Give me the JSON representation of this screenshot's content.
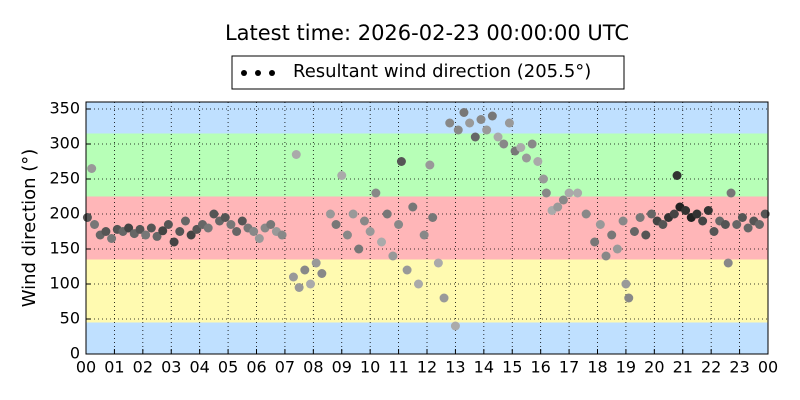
{
  "chart_data": {
    "type": "scatter",
    "title": "Latest time: 2026-02-23 00:00:00 UTC",
    "y_label": "Wind direction (°)",
    "xlim": [
      0,
      24
    ],
    "ylim": [
      0,
      360
    ],
    "xticks": [
      {
        "value": 0,
        "label": "00"
      },
      {
        "value": 1,
        "label": "01"
      },
      {
        "value": 2,
        "label": "02"
      },
      {
        "value": 3,
        "label": "03"
      },
      {
        "value": 4,
        "label": "04"
      },
      {
        "value": 5,
        "label": "05"
      },
      {
        "value": 6,
        "label": "06"
      },
      {
        "value": 7,
        "label": "07"
      },
      {
        "value": 8,
        "label": "08"
      },
      {
        "value": 9,
        "label": "09"
      },
      {
        "value": 10,
        "label": "10"
      },
      {
        "value": 11,
        "label": "11"
      },
      {
        "value": 12,
        "label": "12"
      },
      {
        "value": 13,
        "label": "13"
      },
      {
        "value": 14,
        "label": "14"
      },
      {
        "value": 15,
        "label": "15"
      },
      {
        "value": 16,
        "label": "16"
      },
      {
        "value": 17,
        "label": "17"
      },
      {
        "value": 18,
        "label": "18"
      },
      {
        "value": 19,
        "label": "19"
      },
      {
        "value": 20,
        "label": "20"
      },
      {
        "value": 21,
        "label": "21"
      },
      {
        "value": 22,
        "label": "22"
      },
      {
        "value": 23,
        "label": "23"
      },
      {
        "value": 24,
        "label": "00"
      }
    ],
    "yticks": [
      0,
      50,
      100,
      150,
      200,
      250,
      300,
      350
    ],
    "grid": true,
    "bands": [
      {
        "from": 0,
        "to": 45,
        "color": "#bfe0ff"
      },
      {
        "from": 45,
        "to": 135,
        "color": "#fffab0"
      },
      {
        "from": 135,
        "to": 225,
        "color": "#ffb6b8"
      },
      {
        "from": 225,
        "to": 315,
        "color": "#b7ffb7"
      },
      {
        "from": 315,
        "to": 360,
        "color": "#bfe0ff"
      }
    ],
    "series": [
      {
        "name": "Resultant wind direction (205.5°)",
        "color": "#000000",
        "x": [
          0.05,
          0.2,
          0.3,
          0.5,
          0.7,
          0.9,
          1.1,
          1.3,
          1.5,
          1.7,
          1.9,
          2.1,
          2.3,
          2.5,
          2.7,
          2.9,
          3.1,
          3.3,
          3.5,
          3.7,
          3.9,
          4.1,
          4.3,
          4.5,
          4.7,
          4.9,
          5.1,
          5.3,
          5.5,
          5.7,
          5.9,
          6.1,
          6.3,
          6.5,
          6.7,
          6.9,
          7.3,
          7.4,
          7.5,
          7.7,
          7.9,
          8.1,
          8.3,
          8.6,
          8.8,
          9.0,
          9.2,
          9.4,
          9.6,
          9.8,
          10.0,
          10.2,
          10.4,
          10.6,
          10.8,
          11.0,
          11.1,
          11.3,
          11.5,
          11.7,
          11.9,
          12.1,
          12.2,
          12.4,
          12.6,
          12.8,
          13.0,
          13.1,
          13.3,
          13.5,
          13.7,
          13.9,
          14.1,
          14.3,
          14.5,
          14.7,
          14.9,
          15.1,
          15.3,
          15.5,
          15.7,
          15.9,
          16.1,
          16.2,
          16.4,
          16.6,
          16.8,
          17.0,
          17.3,
          17.6,
          17.9,
          18.1,
          18.3,
          18.5,
          18.7,
          18.9,
          19.0,
          19.1,
          19.3,
          19.5,
          19.7,
          19.9,
          20.1,
          20.3,
          20.5,
          20.7,
          20.8,
          20.9,
          21.1,
          21.3,
          21.5,
          21.7,
          21.9,
          22.1,
          22.3,
          22.5,
          22.6,
          22.7,
          22.9,
          23.1,
          23.3,
          23.5,
          23.7,
          23.9
        ],
        "values": [
          195,
          265,
          185,
          170,
          175,
          165,
          178,
          175,
          180,
          172,
          178,
          170,
          180,
          168,
          176,
          185,
          160,
          175,
          190,
          170,
          178,
          185,
          180,
          200,
          190,
          195,
          185,
          175,
          190,
          180,
          175,
          165,
          180,
          185,
          175,
          170,
          110,
          285,
          95,
          120,
          100,
          130,
          115,
          200,
          185,
          255,
          170,
          200,
          150,
          190,
          175,
          230,
          160,
          200,
          140,
          185,
          275,
          120,
          210,
          100,
          170,
          270,
          195,
          130,
          80,
          330,
          40,
          320,
          345,
          330,
          310,
          335,
          320,
          340,
          310,
          300,
          330,
          290,
          295,
          280,
          300,
          275,
          250,
          230,
          205,
          210,
          220,
          230,
          230,
          200,
          160,
          185,
          140,
          170,
          150,
          190,
          100,
          80,
          175,
          195,
          170,
          200,
          190,
          185,
          195,
          200,
          255,
          210,
          205,
          195,
          200,
          190,
          205,
          175,
          190,
          185,
          130,
          230,
          185,
          195,
          180,
          190,
          185,
          200
        ],
        "colors": [
          "#555",
          "#999",
          "#777",
          "#666",
          "#555",
          "#777",
          "#555",
          "#666",
          "#444",
          "#666",
          "#555",
          "#777",
          "#555",
          "#666",
          "#444",
          "#555",
          "#444",
          "#555",
          "#666",
          "#444",
          "#555",
          "#666",
          "#777",
          "#555",
          "#666",
          "#555",
          "#777",
          "#666",
          "#555",
          "#777",
          "#888",
          "#999",
          "#888",
          "#777",
          "#999",
          "#888",
          "#999",
          "#aaa",
          "#999",
          "#888",
          "#aaa",
          "#999",
          "#888",
          "#999",
          "#777",
          "#aaa",
          "#888",
          "#999",
          "#777",
          "#888",
          "#999",
          "#888",
          "#aaa",
          "#777",
          "#999",
          "#888",
          "#555",
          "#999",
          "#777",
          "#aaa",
          "#888",
          "#999",
          "#777",
          "#aaa",
          "#999",
          "#888",
          "#aaa",
          "#888",
          "#777",
          "#999",
          "#666",
          "#888",
          "#999",
          "#777",
          "#aaa",
          "#888",
          "#999",
          "#777",
          "#aaa",
          "#999",
          "#888",
          "#aaa",
          "#999",
          "#888",
          "#aaa",
          "#999",
          "#888",
          "#aaa",
          "#aaa",
          "#888",
          "#777",
          "#999",
          "#888",
          "#777",
          "#999",
          "#888",
          "#999",
          "#888",
          "#666",
          "#777",
          "#555",
          "#666",
          "#444",
          "#555",
          "#333",
          "#444",
          "#333",
          "#222",
          "#333",
          "#222",
          "#333",
          "#444",
          "#333",
          "#555",
          "#666",
          "#555",
          "#888",
          "#777",
          "#666",
          "#555",
          "#666",
          "#555",
          "#666",
          "#555"
        ]
      }
    ]
  }
}
